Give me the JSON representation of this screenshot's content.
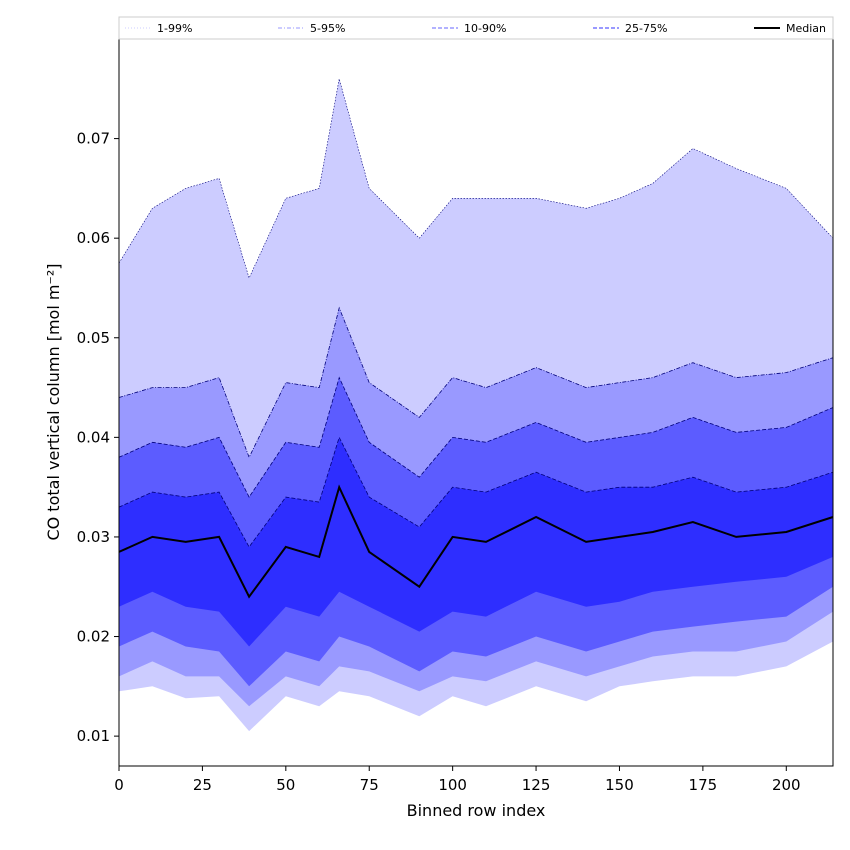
{
  "chart_data": {
    "type": "area",
    "title": "",
    "xlabel": "Binned row index",
    "ylabel": "CO total vertical column [mol m⁻²]",
    "xlim": [
      0,
      214
    ],
    "ylim": [
      0.007,
      0.08
    ],
    "xticks": [
      0,
      25,
      50,
      75,
      100,
      125,
      150,
      175,
      200
    ],
    "yticks": [
      0.01,
      0.02,
      0.03,
      0.04,
      0.05,
      0.06,
      0.07
    ],
    "ytick_labels": [
      "0.01",
      "0.02",
      "0.03",
      "0.04",
      "0.05",
      "0.06",
      "0.07"
    ],
    "grid": false,
    "legend_position": "top",
    "legend": [
      {
        "label": "1-99%",
        "color": "#ccccff",
        "style": "dotted"
      },
      {
        "label": "5-95%",
        "color": "#9999ff",
        "style": "dashdot"
      },
      {
        "label": "10-90%",
        "color": "#6666ff",
        "style": "dashed"
      },
      {
        "label": "25-75%",
        "color": "#3333ff",
        "style": "dashed"
      },
      {
        "label": "Median",
        "color": "#000000",
        "style": "solid"
      }
    ],
    "colors": {
      "band_1_99": "#ccccff",
      "band_5_95": "#9999ff",
      "band_10_90": "#5c5cff",
      "band_25_75": "#2e2eff",
      "edge": "#00007a",
      "median": "#000000"
    },
    "x": [
      0,
      10,
      20,
      30,
      39,
      50,
      60,
      66,
      75,
      90,
      100,
      110,
      125,
      140,
      150,
      160,
      172,
      185,
      200,
      214
    ],
    "series": [
      {
        "name": "p1",
        "values": [
          0.0145,
          0.015,
          0.0138,
          0.014,
          0.0105,
          0.014,
          0.013,
          0.0145,
          0.014,
          0.012,
          0.014,
          0.013,
          0.015,
          0.0135,
          0.015,
          0.0155,
          0.016,
          0.016,
          0.017,
          0.0195
        ]
      },
      {
        "name": "p5",
        "values": [
          0.016,
          0.0175,
          0.016,
          0.016,
          0.013,
          0.016,
          0.015,
          0.017,
          0.0165,
          0.0145,
          0.016,
          0.0155,
          0.0175,
          0.016,
          0.017,
          0.018,
          0.0185,
          0.0185,
          0.0195,
          0.0225
        ]
      },
      {
        "name": "p10",
        "values": [
          0.019,
          0.0205,
          0.019,
          0.0185,
          0.015,
          0.0185,
          0.0175,
          0.02,
          0.019,
          0.0165,
          0.0185,
          0.018,
          0.02,
          0.0185,
          0.0195,
          0.0205,
          0.021,
          0.0215,
          0.022,
          0.025
        ]
      },
      {
        "name": "p25",
        "values": [
          0.023,
          0.0245,
          0.023,
          0.0225,
          0.019,
          0.023,
          0.022,
          0.0245,
          0.023,
          0.0205,
          0.0225,
          0.022,
          0.0245,
          0.023,
          0.0235,
          0.0245,
          0.025,
          0.0255,
          0.026,
          0.028
        ]
      },
      {
        "name": "Median",
        "values": [
          0.0285,
          0.03,
          0.0295,
          0.03,
          0.024,
          0.029,
          0.028,
          0.035,
          0.0285,
          0.025,
          0.03,
          0.0295,
          0.032,
          0.0295,
          0.03,
          0.0305,
          0.0315,
          0.03,
          0.0305,
          0.032
        ]
      },
      {
        "name": "p75",
        "values": [
          0.033,
          0.0345,
          0.034,
          0.0345,
          0.029,
          0.034,
          0.0335,
          0.04,
          0.034,
          0.031,
          0.035,
          0.0345,
          0.0365,
          0.0345,
          0.035,
          0.035,
          0.036,
          0.0345,
          0.035,
          0.0365
        ]
      },
      {
        "name": "p90",
        "values": [
          0.038,
          0.0395,
          0.039,
          0.04,
          0.034,
          0.0395,
          0.039,
          0.046,
          0.0395,
          0.036,
          0.04,
          0.0395,
          0.0415,
          0.0395,
          0.04,
          0.0405,
          0.042,
          0.0405,
          0.041,
          0.043
        ]
      },
      {
        "name": "p95",
        "values": [
          0.044,
          0.045,
          0.045,
          0.046,
          0.038,
          0.0455,
          0.045,
          0.053,
          0.0455,
          0.042,
          0.046,
          0.045,
          0.047,
          0.045,
          0.0455,
          0.046,
          0.0475,
          0.046,
          0.0465,
          0.048
        ]
      },
      {
        "name": "p99",
        "values": [
          0.0575,
          0.063,
          0.065,
          0.066,
          0.056,
          0.064,
          0.065,
          0.076,
          0.065,
          0.06,
          0.064,
          0.064,
          0.064,
          0.063,
          0.064,
          0.0655,
          0.069,
          0.067,
          0.065,
          0.06
        ]
      }
    ]
  }
}
